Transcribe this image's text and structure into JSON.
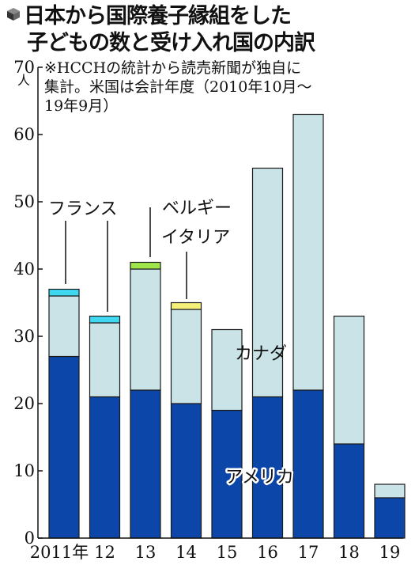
{
  "title": {
    "line1": "日本から国際養子縁組をした",
    "line2": "子どもの数と受け入れ国の内訳"
  },
  "note": {
    "line1": "※HCCHの統計から読売新聞が独自に",
    "line2": "集計。米国は会計年度（2010年10月～",
    "line3": "19年9月）"
  },
  "chart_data": {
    "type": "bar",
    "stacked": true,
    "categories": [
      "2011年",
      "12",
      "13",
      "14",
      "15",
      "16",
      "17",
      "18",
      "19"
    ],
    "series": [
      {
        "name": "アメリカ",
        "color": "#0c46a8",
        "values": [
          27,
          21,
          22,
          20,
          19,
          21,
          22,
          14,
          6
        ]
      },
      {
        "name": "カナダ",
        "color": "#c9e3e6",
        "values": [
          9,
          11,
          18,
          14,
          12,
          34,
          41,
          19,
          2
        ]
      },
      {
        "name": "フランス",
        "color": "#3fd8f0",
        "values": [
          1,
          1,
          0,
          0,
          0,
          0,
          0,
          0,
          0
        ]
      },
      {
        "name": "ベルギー",
        "color": "#9ee64a",
        "values": [
          0,
          0,
          1,
          0,
          0,
          0,
          0,
          0,
          0
        ]
      },
      {
        "name": "イタリア",
        "color": "#f5f07a",
        "values": [
          0,
          0,
          0,
          1,
          0,
          0,
          0,
          0,
          0
        ]
      }
    ],
    "ylim": [
      0,
      70
    ],
    "yticks": [
      0,
      10,
      20,
      30,
      40,
      50,
      60,
      70
    ],
    "yunit": "人",
    "grid": false,
    "legend": "inline labels"
  }
}
